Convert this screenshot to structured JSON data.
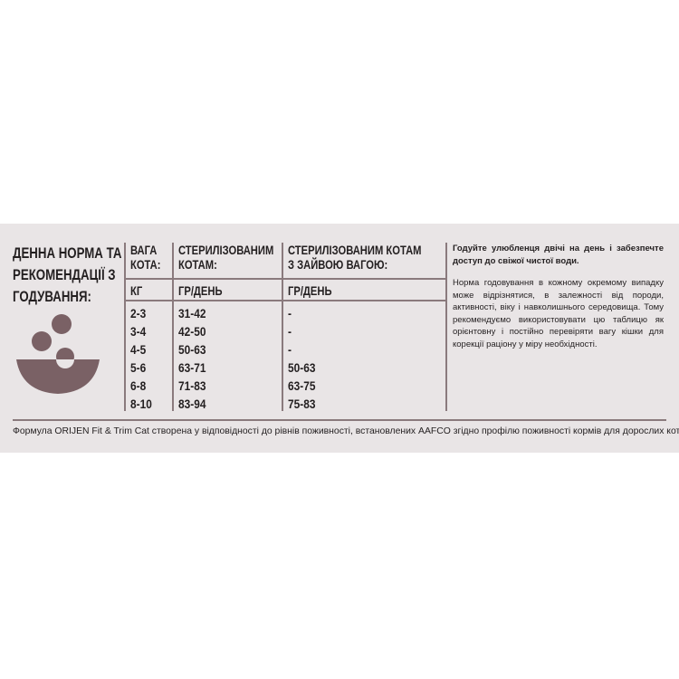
{
  "title_lines": [
    "ДЕННА НОРМА ТА",
    "РЕКОМЕНДАЦІЇ З",
    "ГОДУВАННЯ:"
  ],
  "table": {
    "headers": [
      [
        "ВАГА",
        "КОТА:"
      ],
      [
        "СТЕРИЛІЗОВАНИМ",
        "КОТАМ:"
      ],
      [
        "СТЕРИЛІЗОВАНИМ КОТАМ",
        "З ЗАЙВОЮ ВАГОЮ:"
      ]
    ],
    "units": [
      "КГ",
      "ГР/ДЕНЬ",
      "ГР/ДЕНЬ"
    ],
    "rows": [
      [
        "2-3",
        "31-42",
        "-"
      ],
      [
        "3-4",
        "42-50",
        "-"
      ],
      [
        "4-5",
        "50-63",
        "-"
      ],
      [
        "5-6",
        "63-71",
        "50-63"
      ],
      [
        "6-8",
        "71-83",
        "63-75"
      ],
      [
        "8-10",
        "83-94",
        "75-83"
      ]
    ]
  },
  "notes": {
    "bold": "Годуйте улюбленця двічі на день і забезпечте доступ до свіжої чистої води.",
    "body": "Норма годовування в кожному окремому випадку може відрізнятися, в залежності від породи, активності, віку і навколишнього середовища. Тому рекомендуємо використовувати цю таблицю як орієнтовну і постійно перевіряти вагу кішки для корекції раціону у міру необхідності."
  },
  "footer": "Формула ORIJEN Fit & Trim Cat створена у відповідності до рівнів поживності, встановлених AAFCO згідно профілю поживності кормів для дорослих котів.",
  "colors": {
    "panel": "#e9e5e6",
    "icon": "#7a6165",
    "text": "#231f20"
  },
  "icon": "food-bowl-icon"
}
